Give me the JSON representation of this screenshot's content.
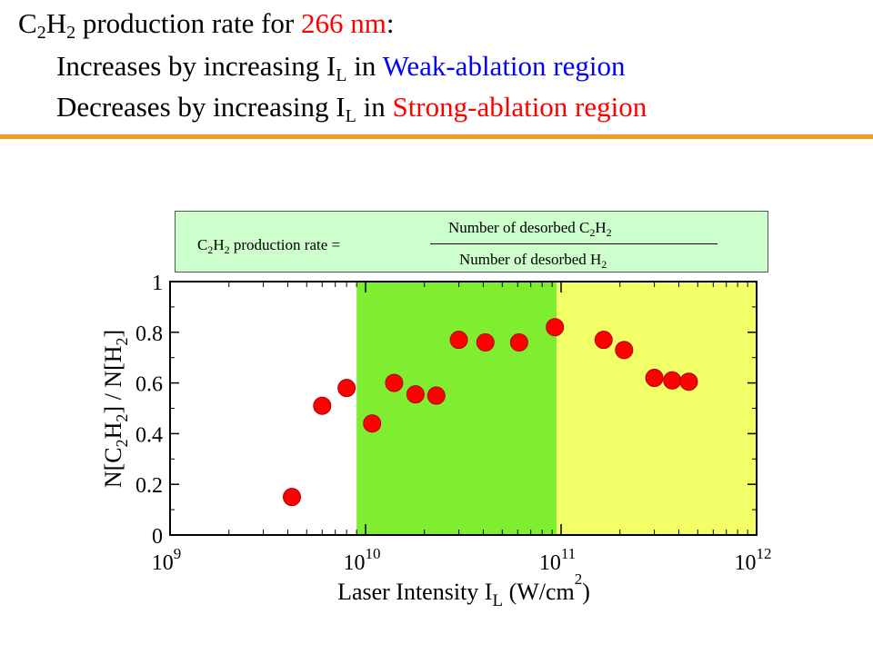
{
  "heading": {
    "line1": {
      "prefix": "C",
      "sub1": "2",
      "mid": "H",
      "sub2": "2",
      "text": " production rate for ",
      "highlight": "266 nm",
      "suffix": ":",
      "highlight_color": "#ff0000"
    },
    "line2": {
      "text": "Increases by increasing I",
      "sub": "L",
      "mid": " in ",
      "highlight": "Weak-ablation region",
      "highlight_color": "#0000ff"
    },
    "line3": {
      "text": "Decreases by increasing I",
      "sub": "L",
      "mid": " in ",
      "highlight": "Strong-ablation region",
      "highlight_color": "#ff0000"
    }
  },
  "accent_color": "#f0a020",
  "formula": {
    "lhs_c": "C",
    "lhs_sub1": "2",
    "lhs_h": "H",
    "lhs_sub2": "2",
    "lhs_rest": " production rate =",
    "num_text": "Number of desorbed C",
    "num_sub1": "2",
    "num_h": "H",
    "num_sub2": "2",
    "den_text": "Number of desorbed H",
    "den_sub": "2",
    "background": "#ccffcc"
  },
  "chart_data": {
    "type": "scatter",
    "x_scale": "log",
    "xlim": [
      1000000000.0,
      1000000000000.0
    ],
    "ylim": [
      0,
      1
    ],
    "x_tick_labels": [
      {
        "base": "10",
        "exp": "9"
      },
      {
        "base": "10",
        "exp": "10"
      },
      {
        "base": "10",
        "exp": "11"
      },
      {
        "base": "10",
        "exp": "12"
      }
    ],
    "y_tick_labels": [
      "0",
      "0.2",
      "0.4",
      "0.6",
      "0.8",
      "1"
    ],
    "xlabel": {
      "text": "Laser Intensity I",
      "sub": "L",
      "unit": " (W/cm",
      "sup": "2",
      "close": ")"
    },
    "ylabel": {
      "p1": "N[C",
      "s1": "2",
      "p2": "H",
      "s2": "2",
      "p3": "] / N[H",
      "s3": "2",
      "p4": "]"
    },
    "regions": [
      {
        "x_from": 9000000000.0,
        "x_to": 95000000000.0,
        "color": "#80ee30"
      },
      {
        "x_from": 95000000000.0,
        "x_to": 1000000000000.0,
        "color": "#f2ff66"
      }
    ],
    "marker_color": "#ff0000",
    "points": [
      {
        "x": 4200000000.0,
        "y": 0.15
      },
      {
        "x": 6000000000.0,
        "y": 0.51
      },
      {
        "x": 8000000000.0,
        "y": 0.58
      },
      {
        "x": 10800000000.0,
        "y": 0.44
      },
      {
        "x": 14000000000.0,
        "y": 0.6
      },
      {
        "x": 18000000000.0,
        "y": 0.555
      },
      {
        "x": 23000000000.0,
        "y": 0.55
      },
      {
        "x": 30000000000.0,
        "y": 0.77
      },
      {
        "x": 41000000000.0,
        "y": 0.76
      },
      {
        "x": 61000000000.0,
        "y": 0.76
      },
      {
        "x": 93000000000.0,
        "y": 0.82
      },
      {
        "x": 165000000000.0,
        "y": 0.77
      },
      {
        "x": 210000000000.0,
        "y": 0.73
      },
      {
        "x": 300000000000.0,
        "y": 0.62
      },
      {
        "x": 370000000000.0,
        "y": 0.61
      },
      {
        "x": 450000000000.0,
        "y": 0.605
      }
    ]
  }
}
